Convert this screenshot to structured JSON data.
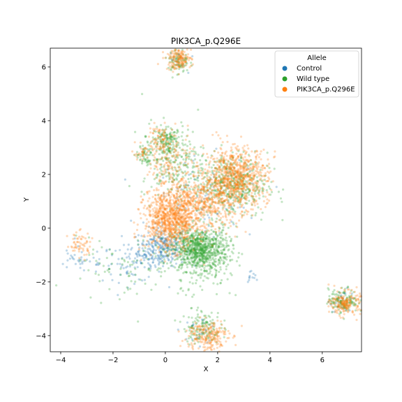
{
  "chart_data": {
    "type": "scatter",
    "title": "PIK3CA_p.Q296E",
    "xlabel": "X",
    "ylabel": "Y",
    "xlim": [
      -4.4,
      7.5
    ],
    "ylim": [
      -4.6,
      6.7
    ],
    "xticks": [
      -4,
      -2,
      0,
      2,
      4,
      6
    ],
    "yticks": [
      -4,
      -2,
      0,
      2,
      4,
      6
    ],
    "tick_labels_x": [
      "−4",
      "−2",
      "0",
      "2",
      "4",
      "6"
    ],
    "tick_labels_y": [
      "−4",
      "−2",
      "0",
      "2",
      "4",
      "6"
    ],
    "grid": false,
    "legend": {
      "title": "Allele",
      "placement": "top-right",
      "entries": [
        "Control",
        "Wild type",
        "PIK3CA_p.Q296E"
      ]
    },
    "series": [
      {
        "name": "Control",
        "color": "#1f77b4",
        "clusters": [
          {
            "cx": -0.1,
            "cy": -0.7,
            "sx": 0.45,
            "sy": 0.35,
            "n": 260
          },
          {
            "cx": -1.2,
            "cy": -1.3,
            "sx": 0.6,
            "sy": 0.35,
            "n": 90
          },
          {
            "cx": -3.2,
            "cy": -1.2,
            "sx": 0.6,
            "sy": 0.25,
            "n": 40
          },
          {
            "cx": 1.6,
            "cy": 1.0,
            "sx": 1.1,
            "sy": 0.8,
            "n": 90
          },
          {
            "cx": 6.8,
            "cy": -2.7,
            "sx": 0.25,
            "sy": 0.2,
            "n": 25
          },
          {
            "cx": 1.3,
            "cy": -3.8,
            "sx": 0.35,
            "sy": 0.25,
            "n": 25
          },
          {
            "cx": 0.4,
            "cy": 6.2,
            "sx": 0.2,
            "sy": 0.25,
            "n": 15
          },
          {
            "cx": 3.3,
            "cy": -1.8,
            "sx": 0.12,
            "sy": 0.12,
            "n": 12
          }
        ]
      },
      {
        "name": "Wild type",
        "color": "#2ca02c",
        "clusters": [
          {
            "cx": 1.3,
            "cy": -0.8,
            "sx": 0.55,
            "sy": 0.4,
            "n": 900
          },
          {
            "cx": 2.5,
            "cy": 1.6,
            "sx": 0.7,
            "sy": 0.6,
            "n": 450
          },
          {
            "cx": 0.3,
            "cy": 2.5,
            "sx": 0.6,
            "sy": 0.7,
            "n": 250
          },
          {
            "cx": 0.0,
            "cy": 3.2,
            "sx": 0.25,
            "sy": 0.3,
            "n": 120
          },
          {
            "cx": -0.8,
            "cy": 2.7,
            "sx": 0.15,
            "sy": 0.2,
            "n": 50
          },
          {
            "cx": 6.8,
            "cy": -2.7,
            "sx": 0.28,
            "sy": 0.22,
            "n": 140
          },
          {
            "cx": 1.4,
            "cy": -3.7,
            "sx": 0.35,
            "sy": 0.3,
            "n": 130
          },
          {
            "cx": 0.5,
            "cy": 6.2,
            "sx": 0.2,
            "sy": 0.25,
            "n": 80
          },
          {
            "cx": -1.6,
            "cy": -1.6,
            "sx": 0.9,
            "sy": 0.6,
            "n": 80
          },
          {
            "cx": 1.8,
            "cy": -1.8,
            "sx": 0.6,
            "sy": 0.5,
            "n": 60
          }
        ]
      },
      {
        "name": "PIK3CA_p.Q296E",
        "color": "#ff7f0e",
        "clusters": [
          {
            "cx": 0.2,
            "cy": 0.3,
            "sx": 0.5,
            "sy": 0.55,
            "n": 900
          },
          {
            "cx": 2.7,
            "cy": 1.9,
            "sx": 0.6,
            "sy": 0.55,
            "n": 800
          },
          {
            "cx": 1.4,
            "cy": 0.9,
            "sx": 0.7,
            "sy": 0.5,
            "n": 500
          },
          {
            "cx": 0.2,
            "cy": 2.6,
            "sx": 0.45,
            "sy": 0.5,
            "n": 150
          },
          {
            "cx": -0.2,
            "cy": 3.3,
            "sx": 0.2,
            "sy": 0.25,
            "n": 60
          },
          {
            "cx": 0.5,
            "cy": 6.3,
            "sx": 0.25,
            "sy": 0.2,
            "n": 160
          },
          {
            "cx": 1.6,
            "cy": -4.0,
            "sx": 0.4,
            "sy": 0.3,
            "n": 220
          },
          {
            "cx": 6.9,
            "cy": -2.8,
            "sx": 0.28,
            "sy": 0.22,
            "n": 190
          },
          {
            "cx": -3.3,
            "cy": -0.6,
            "sx": 0.25,
            "sy": 0.25,
            "n": 60
          },
          {
            "cx": -0.9,
            "cy": 2.8,
            "sx": 0.12,
            "sy": 0.15,
            "n": 25
          }
        ]
      }
    ]
  }
}
